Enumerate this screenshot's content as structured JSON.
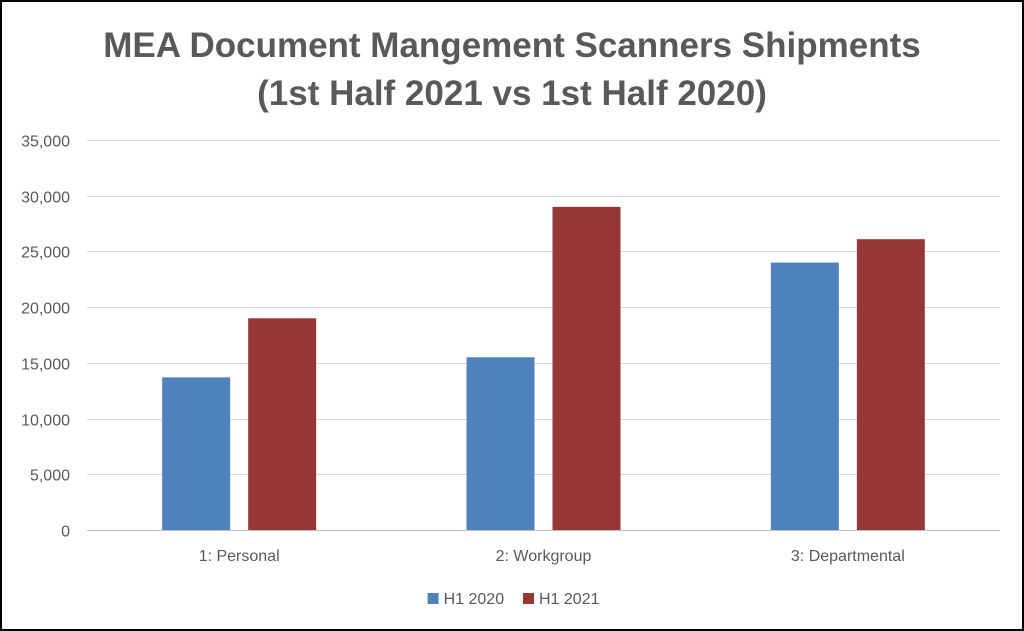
{
  "chart_data": {
    "type": "bar",
    "title_lines": [
      "MEA Document Mangement Scanners Shipments",
      "(1st Half 2021 vs 1st Half 2020)"
    ],
    "categories": [
      "1: Personal",
      "2: Workgroup",
      "3: Departmental"
    ],
    "series": [
      {
        "name": "H1 2020",
        "values": [
          13700,
          15500,
          24000
        ],
        "color": "#4F81BD"
      },
      {
        "name": "H1 2021",
        "values": [
          19000,
          29000,
          26100
        ],
        "color": "#953735"
      }
    ],
    "ylim": [
      0,
      35000
    ],
    "yticks": [
      0,
      5000,
      10000,
      15000,
      20000,
      25000,
      30000,
      35000
    ],
    "ytick_labels": [
      "0",
      "5,000",
      "10,000",
      "15,000",
      "20,000",
      "25,000",
      "30,000",
      "35,000"
    ],
    "grid": true,
    "legend_position": "bottom"
  }
}
